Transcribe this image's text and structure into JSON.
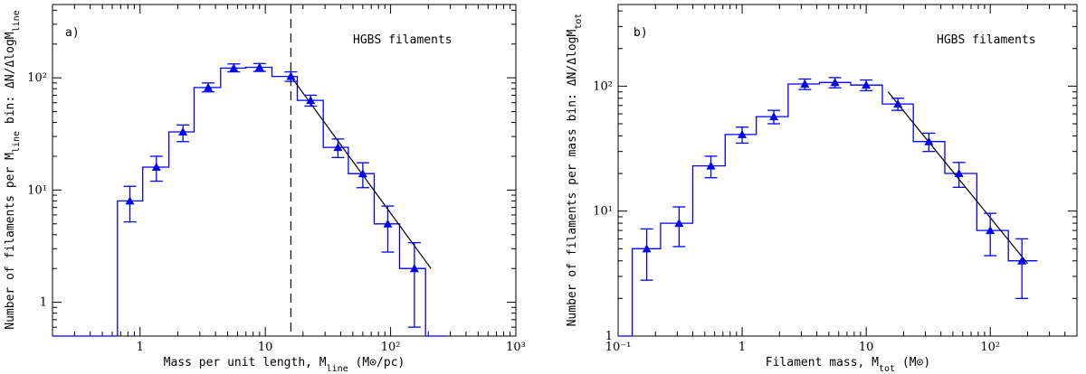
{
  "chart_data": [
    {
      "type": "histogram",
      "panel_label": "a)",
      "annotation": "HGBS filaments",
      "xlabel_main": "Mass per unit length, M",
      "xlabel_sub": "line",
      "xlabel_tail": " (M⊙/pc)",
      "ylabel_main": "Number of filaments per M",
      "ylabel_sub": "line",
      "ylabel_mid": " bin: ΔN/ΔlogM",
      "ylabel_sub2": "line",
      "xscale": "log",
      "yscale": "log",
      "xlim": [
        0.2,
        1000
      ],
      "ylim": [
        0.5,
        450
      ],
      "xticks": [
        {
          "value": 1,
          "label": "1"
        },
        {
          "value": 10,
          "label": "10"
        },
        {
          "value": 100,
          "label": "10²"
        },
        {
          "value": 1000,
          "label": "10³"
        }
      ],
      "yticks": [
        {
          "value": 1,
          "label": "1"
        },
        {
          "value": 10,
          "label": "10¹"
        },
        {
          "value": 100,
          "label": "10²"
        }
      ],
      "histogram": {
        "edges": [
          0.2,
          0.66,
          1.05,
          1.7,
          2.7,
          4.4,
          7.0,
          11.3,
          18.0,
          29.0,
          46.0,
          74.0,
          118.0,
          190.0,
          280.0
        ],
        "values": [
          0.5,
          8,
          16,
          33,
          82,
          122,
          124,
          103,
          63,
          24,
          14,
          5,
          2,
          0.5
        ]
      },
      "points": [
        {
          "x": 0.83,
          "y": 8,
          "ylow": 5.2,
          "yhigh": 10.8
        },
        {
          "x": 1.35,
          "y": 16,
          "ylow": 12,
          "yhigh": 20
        },
        {
          "x": 2.2,
          "y": 33,
          "ylow": 27,
          "yhigh": 38
        },
        {
          "x": 3.5,
          "y": 82,
          "ylow": 75,
          "yhigh": 90
        },
        {
          "x": 5.6,
          "y": 122,
          "ylow": 113,
          "yhigh": 133
        },
        {
          "x": 9.0,
          "y": 124,
          "ylow": 114,
          "yhigh": 134
        },
        {
          "x": 16.0,
          "y": 103,
          "ylow": 93,
          "yhigh": 113
        },
        {
          "x": 23.0,
          "y": 63,
          "ylow": 56,
          "yhigh": 70
        },
        {
          "x": 38.0,
          "y": 24,
          "ylow": 19.5,
          "yhigh": 28.5
        },
        {
          "x": 60.0,
          "y": 14,
          "ylow": 10.5,
          "yhigh": 17.5
        },
        {
          "x": 95.0,
          "y": 5,
          "ylow": 2.8,
          "yhigh": 7.2
        },
        {
          "x": 155.0,
          "y": 2,
          "ylow": 0.6,
          "yhigh": 3.4
        }
      ],
      "fit_line": {
        "x": [
          16.0,
          210.0
        ],
        "y": [
          103,
          2
        ]
      },
      "vline": 16.0,
      "colors": {
        "histogram": "#0000ff",
        "points": "#0000ff",
        "fit": "#000000",
        "vline": "#000000"
      }
    },
    {
      "type": "histogram",
      "panel_label": "b)",
      "annotation": "HGBS filaments",
      "xlabel_main": "Filament mass, M",
      "xlabel_sub": "tot",
      "xlabel_tail": " (M⊙)",
      "ylabel_main": "Number of filaments per mass bin: ΔN/ΔlogM",
      "ylabel_sub": "tot",
      "ylabel_mid": "",
      "ylabel_sub2": "",
      "xscale": "log",
      "yscale": "log",
      "xlim": [
        0.1,
        500
      ],
      "ylim": [
        1,
        450
      ],
      "xticks": [
        {
          "value": 0.1,
          "label": "10⁻¹"
        },
        {
          "value": 1,
          "label": "1"
        },
        {
          "value": 10,
          "label": "10"
        },
        {
          "value": 100,
          "label": "10²"
        }
      ],
      "yticks": [
        {
          "value": 1,
          "label": "1"
        },
        {
          "value": 10,
          "label": "10¹"
        },
        {
          "value": 100,
          "label": "10²"
        }
      ],
      "histogram": {
        "edges": [
          0.1,
          0.13,
          0.22,
          0.4,
          0.73,
          1.3,
          2.35,
          4.2,
          7.5,
          13.5,
          24.0,
          43.0,
          78.0,
          140.0,
          240.0
        ],
        "values": [
          1,
          5,
          8,
          23,
          41,
          57,
          104,
          107,
          102,
          72,
          36,
          20,
          7,
          4
        ]
      },
      "points": [
        {
          "x": 0.17,
          "y": 5,
          "ylow": 2.8,
          "yhigh": 7.2
        },
        {
          "x": 0.31,
          "y": 8,
          "ylow": 5.2,
          "yhigh": 10.8
        },
        {
          "x": 0.56,
          "y": 23,
          "ylow": 18.5,
          "yhigh": 27.5
        },
        {
          "x": 1.0,
          "y": 41,
          "ylow": 35,
          "yhigh": 47
        },
        {
          "x": 1.8,
          "y": 57,
          "ylow": 50,
          "yhigh": 64
        },
        {
          "x": 3.2,
          "y": 104,
          "ylow": 94,
          "yhigh": 114
        },
        {
          "x": 5.6,
          "y": 107,
          "ylow": 97,
          "yhigh": 117
        },
        {
          "x": 10.0,
          "y": 102,
          "ylow": 92,
          "yhigh": 112
        },
        {
          "x": 18.0,
          "y": 72,
          "ylow": 64,
          "yhigh": 80
        },
        {
          "x": 32.0,
          "y": 36,
          "ylow": 30,
          "yhigh": 42
        },
        {
          "x": 56.0,
          "y": 20,
          "ylow": 15.5,
          "yhigh": 24.5
        },
        {
          "x": 100.0,
          "y": 7,
          "ylow": 4.4,
          "yhigh": 9.6
        },
        {
          "x": 180.0,
          "y": 4,
          "ylow": 2.0,
          "yhigh": 6.0
        }
      ],
      "fit_line": {
        "x": [
          15.0,
          200.0
        ],
        "y": [
          90,
          3.8
        ]
      },
      "vline": null,
      "colors": {
        "histogram": "#0000ff",
        "points": "#0000ff",
        "fit": "#000000",
        "vline": "#000000"
      }
    }
  ]
}
